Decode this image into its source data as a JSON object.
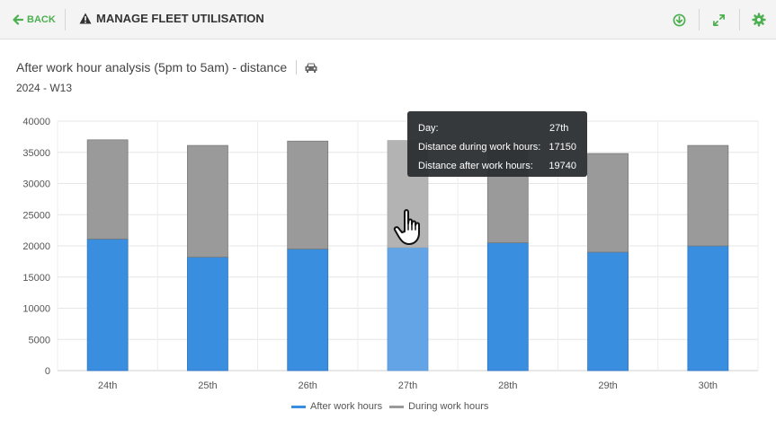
{
  "header": {
    "back_label": "BACK",
    "title": "MANAGE FLEET UTILISATION",
    "icons": [
      "download-icon",
      "expand-icon",
      "settings-icon"
    ]
  },
  "chart_title": "After work hour analysis (5pm to 5am) - distance",
  "chart_subtitle": "2024 - W13",
  "tooltip": {
    "day_label": "Day:",
    "day_value": "27th",
    "during_label": "Distance during work hours:",
    "during_value": "17150",
    "after_label": "Distance after work hours:",
    "after_value": "19740"
  },
  "colors": {
    "after": "#3a8ee0",
    "after_highlight": "#63a4e6",
    "during": "#9a9a9a",
    "during_highlight": "#b3b3b3",
    "accent": "#4caf50"
  },
  "chart_data": {
    "type": "bar",
    "stacked": true,
    "categories": [
      "24th",
      "25th",
      "26th",
      "27th",
      "28th",
      "29th",
      "30th"
    ],
    "series": [
      {
        "name": "After work hours",
        "values": [
          21100,
          18200,
          19500,
          19740,
          20500,
          19000,
          20000
        ]
      },
      {
        "name": "During work hours",
        "values": [
          15900,
          17900,
          17300,
          17150,
          15400,
          15800,
          16100
        ]
      }
    ],
    "ylim": [
      0,
      40000
    ],
    "yticks": [
      0,
      5000,
      10000,
      15000,
      20000,
      25000,
      30000,
      35000,
      40000
    ],
    "highlighted_category": "27th",
    "grid": true,
    "legend_position": "bottom"
  }
}
